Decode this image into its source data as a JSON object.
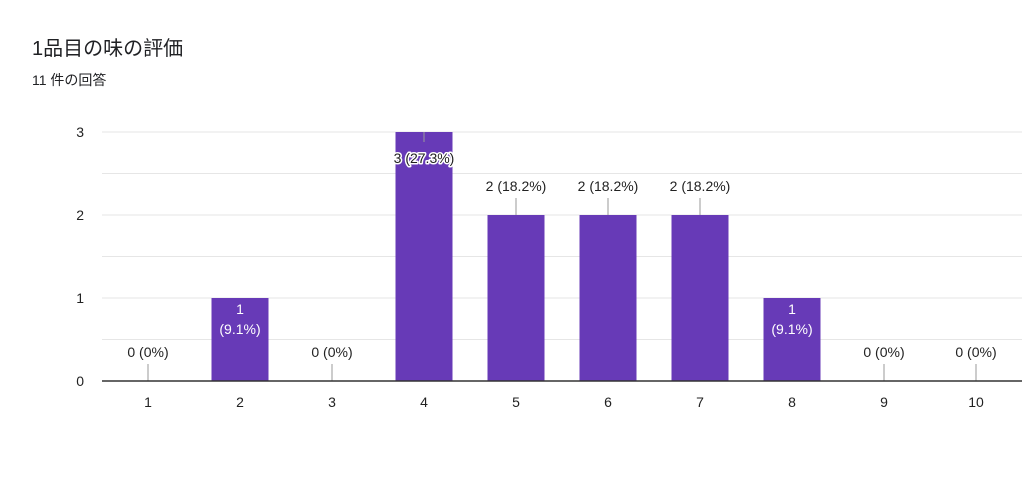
{
  "title": "1品目の味の評価",
  "subtitle": "11 件の回答",
  "colors": {
    "bar": "#673ab7",
    "grid": "#e6e6e6",
    "axis": "#333333",
    "leader": "#999999"
  },
  "chart_data": {
    "type": "bar",
    "title": "1品目の味の評価",
    "subtitle": "11 件の回答",
    "categories": [
      "1",
      "2",
      "3",
      "4",
      "5",
      "6",
      "7",
      "8",
      "9",
      "10"
    ],
    "values": [
      0,
      1,
      0,
      3,
      2,
      2,
      2,
      1,
      0,
      0
    ],
    "data_labels": [
      "0 (0%)",
      "1\n(9.1%)",
      "0 (0%)",
      "3 (27.3%)",
      "2 (18.2%)",
      "2 (18.2%)",
      "2 (18.2%)",
      "1\n(9.1%)",
      "0 (0%)",
      "0 (0%)"
    ],
    "ylim": [
      0,
      3
    ],
    "yticks": [
      0,
      1,
      2,
      3
    ],
    "grid": true,
    "xlabel": "",
    "ylabel": ""
  }
}
